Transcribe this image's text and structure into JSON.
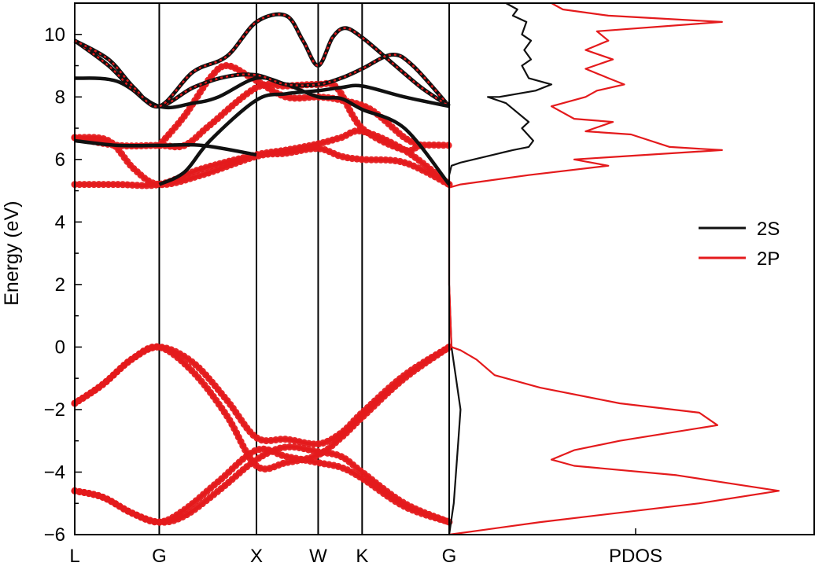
{
  "chart_data": [
    {
      "type": "line",
      "panel": "band-structure",
      "ylabel": "Energy (eV)",
      "ylim": [
        -6,
        11
      ],
      "y_ticks": [
        -6,
        -4,
        -2,
        0,
        2,
        4,
        6,
        8,
        10
      ],
      "k_labels": [
        "L",
        "G",
        "X",
        "W",
        "K",
        "G"
      ],
      "k_positions": [
        0,
        1,
        2.15,
        2.88,
        3.4,
        4.43
      ],
      "series": [
        {
          "color": "#e41a1c",
          "marker": "dots",
          "points": [
            [
              0,
              -1.8
            ],
            [
              0.33,
              -1.2
            ],
            [
              0.67,
              -0.4
            ],
            [
              1,
              0
            ],
            [
              1.4,
              -0.5
            ],
            [
              1.8,
              -1.7
            ],
            [
              2.15,
              -2.9
            ],
            [
              2.5,
              -2.95
            ],
            [
              2.88,
              -3.1
            ],
            [
              3.15,
              -2.75
            ],
            [
              3.4,
              -2.1
            ],
            [
              3.9,
              -0.9
            ],
            [
              4.43,
              0
            ]
          ]
        },
        {
          "color": "#e41a1c",
          "marker": "dots",
          "points": [
            [
              0,
              -1.8
            ],
            [
              0.33,
              -1.2
            ],
            [
              0.67,
              -0.4
            ],
            [
              1,
              0
            ],
            [
              1.4,
              -0.8
            ],
            [
              1.8,
              -2.2
            ],
            [
              2.15,
              -3.8
            ],
            [
              2.5,
              -3.7
            ],
            [
              2.88,
              -3.45
            ],
            [
              3.15,
              -2.9
            ],
            [
              3.4,
              -2.25
            ],
            [
              3.9,
              -1.0
            ],
            [
              4.43,
              0
            ]
          ]
        },
        {
          "color": "#e41a1c",
          "marker": "dots",
          "points": [
            [
              0,
              -4.6
            ],
            [
              0.33,
              -4.8
            ],
            [
              0.67,
              -5.3
            ],
            [
              1,
              -5.6
            ],
            [
              1.3,
              -5.4
            ],
            [
              1.7,
              -4.6
            ],
            [
              2.15,
              -3.6
            ],
            [
              2.5,
              -3.2
            ],
            [
              2.88,
              -3.35
            ],
            [
              3.15,
              -3.5
            ],
            [
              3.4,
              -4.0
            ],
            [
              3.9,
              -5.0
            ],
            [
              4.43,
              -5.6
            ]
          ]
        },
        {
          "color": "#e41a1c",
          "marker": "dots",
          "points": [
            [
              0,
              -4.6
            ],
            [
              0.33,
              -4.8
            ],
            [
              0.67,
              -5.3
            ],
            [
              1,
              -5.6
            ],
            [
              1.3,
              -5.2
            ],
            [
              1.7,
              -4.3
            ],
            [
              2.15,
              -3.3
            ],
            [
              2.5,
              -3.5
            ],
            [
              2.88,
              -3.7
            ],
            [
              3.15,
              -3.85
            ],
            [
              3.4,
              -4.2
            ],
            [
              3.9,
              -5.1
            ],
            [
              4.43,
              -5.6
            ]
          ]
        },
        {
          "color": "#e41a1c",
          "marker": "dots",
          "points": [
            [
              0,
              5.2
            ],
            [
              0.5,
              5.2
            ],
            [
              1,
              5.2
            ],
            [
              1.5,
              5.7
            ],
            [
              2.15,
              6.15
            ],
            [
              2.5,
              6.3
            ],
            [
              2.88,
              6.5
            ],
            [
              3.15,
              6.7
            ],
            [
              3.4,
              6.9
            ],
            [
              3.9,
              6.3
            ],
            [
              4.43,
              5.2
            ]
          ]
        },
        {
          "color": "#e41a1c",
          "marker": "dots",
          "points": [
            [
              0,
              6.7
            ],
            [
              0.4,
              6.6
            ],
            [
              0.7,
              5.7
            ],
            [
              1,
              5.2
            ],
            [
              1.5,
              5.5
            ],
            [
              2.15,
              6.1
            ],
            [
              2.5,
              6.2
            ],
            [
              2.88,
              6.35
            ],
            [
              3.15,
              6.1
            ],
            [
              3.4,
              6.0
            ],
            [
              3.9,
              5.9
            ],
            [
              4.43,
              5.2
            ]
          ]
        },
        {
          "color": "#e41a1c",
          "marker": "dots",
          "points": [
            [
              0,
              6.7
            ],
            [
              0.5,
              6.45
            ],
            [
              1,
              6.45
            ],
            [
              1.3,
              6.45
            ],
            [
              1.6,
              7.1
            ],
            [
              2.15,
              8.3
            ],
            [
              2.5,
              8.35
            ],
            [
              2.88,
              8.4
            ],
            [
              3.1,
              8.3
            ],
            [
              3.4,
              7.0
            ],
            [
              3.9,
              6.3
            ],
            [
              4.1,
              6.45
            ],
            [
              4.43,
              6.45
            ]
          ]
        },
        {
          "color": "#e41a1c",
          "marker": "dots",
          "points": [
            [
              1,
              6.45
            ],
            [
              1.3,
              7.4
            ],
            [
              1.6,
              8.6
            ],
            [
              1.8,
              9.0
            ],
            [
              2.1,
              8.6
            ],
            [
              2.5,
              8.0
            ],
            [
              2.88,
              8.0
            ],
            [
              3.15,
              7.9
            ],
            [
              3.5,
              7.6
            ],
            [
              3.9,
              6.7
            ],
            [
              4.1,
              6.45
            ]
          ]
        },
        {
          "color": "#111111",
          "marker": "none",
          "points": [
            [
              0,
              6.6
            ],
            [
              0.5,
              6.45
            ],
            [
              1,
              6.45
            ],
            [
              1.5,
              6.45
            ],
            [
              2.15,
              6.15
            ]
          ]
        },
        {
          "color": "#111111",
          "marker": "none",
          "points": [
            [
              0,
              8.6
            ],
            [
              0.5,
              8.5
            ],
            [
              1,
              7.7
            ],
            [
              1.4,
              7.8
            ],
            [
              1.7,
              8.0
            ],
            [
              2.15,
              8.6
            ],
            [
              2.5,
              8.4
            ],
            [
              2.88,
              8.0
            ],
            [
              3.15,
              7.95
            ],
            [
              3.4,
              7.6
            ],
            [
              3.9,
              7.0
            ],
            [
              4.43,
              5.2
            ]
          ]
        },
        {
          "color": "#111111",
          "marker": "dashed-red",
          "points": [
            [
              0,
              9.8
            ],
            [
              0.4,
              9.0
            ],
            [
              0.7,
              8.2
            ],
            [
              1,
              7.7
            ],
            [
              1.4,
              8.3
            ],
            [
              1.8,
              8.65
            ],
            [
              2.15,
              8.7
            ],
            [
              2.5,
              8.4
            ],
            [
              2.88,
              8.4
            ],
            [
              3.15,
              8.6
            ],
            [
              3.4,
              8.9
            ],
            [
              3.75,
              9.35
            ],
            [
              4.0,
              9.0
            ],
            [
              4.43,
              7.7
            ]
          ]
        },
        {
          "color": "#111111",
          "marker": "dashed-red",
          "points": [
            [
              0,
              9.8
            ],
            [
              0.4,
              9.2
            ],
            [
              0.7,
              8.3
            ],
            [
              1,
              7.7
            ],
            [
              1.4,
              8.8
            ],
            [
              1.8,
              9.3
            ],
            [
              2.15,
              10.4
            ],
            [
              2.5,
              10.6
            ],
            [
              2.7,
              9.8
            ],
            [
              2.88,
              9.0
            ],
            [
              3.05,
              9.9
            ],
            [
              3.2,
              10.2
            ],
            [
              3.4,
              9.9
            ],
            [
              3.75,
              9.1
            ],
            [
              4.1,
              8.3
            ],
            [
              4.43,
              7.7
            ]
          ]
        },
        {
          "color": "#111111",
          "marker": "none",
          "points": [
            [
              1,
              5.2
            ],
            [
              1.3,
              5.6
            ],
            [
              1.6,
              6.6
            ],
            [
              2.15,
              7.9
            ],
            [
              2.5,
              8.1
            ],
            [
              2.88,
              8.2
            ],
            [
              3.15,
              8.3
            ],
            [
              3.4,
              8.35
            ],
            [
              3.9,
              8.0
            ],
            [
              4.43,
              7.7
            ]
          ]
        }
      ]
    },
    {
      "type": "line",
      "panel": "pdos",
      "xlabel": "PDOS",
      "ylim": [
        -6,
        11
      ],
      "legend": {
        "position": "right",
        "entries": [
          {
            "name": "2S",
            "color": "#111111"
          },
          {
            "name": "2P",
            "color": "#e41a1c"
          }
        ]
      },
      "series": [
        {
          "name": "2S",
          "color": "#111111",
          "points": [
            [
              0,
              -6
            ],
            [
              0.02,
              -5
            ],
            [
              0.03,
              -4
            ],
            [
              0.04,
              -3
            ],
            [
              0.05,
              -2
            ],
            [
              0.03,
              -1
            ],
            [
              0.01,
              0
            ],
            [
              0,
              2
            ],
            [
              0,
              4
            ],
            [
              0,
              5.5
            ],
            [
              0.01,
              5.8
            ],
            [
              0.05,
              5.9
            ],
            [
              0.28,
              6.3
            ],
            [
              0.35,
              6.4
            ],
            [
              0.37,
              6.6
            ],
            [
              0.32,
              7.0
            ],
            [
              0.35,
              7.2
            ],
            [
              0.25,
              7.8
            ],
            [
              0.17,
              8.0
            ],
            [
              0.22,
              8.0
            ],
            [
              0.38,
              8.2
            ],
            [
              0.45,
              8.4
            ],
            [
              0.35,
              8.6
            ],
            [
              0.32,
              9.0
            ],
            [
              0.36,
              9.2
            ],
            [
              0.33,
              9.5
            ],
            [
              0.36,
              9.8
            ],
            [
              0.32,
              10.0
            ],
            [
              0.34,
              10.4
            ],
            [
              0.28,
              10.6
            ],
            [
              0.3,
              10.8
            ],
            [
              0.25,
              11
            ]
          ]
        },
        {
          "name": "2P",
          "color": "#e41a1c",
          "points": [
            [
              0,
              -6
            ],
            [
              0.4,
              -5.6
            ],
            [
              1.1,
              -5.0
            ],
            [
              1.45,
              -4.6
            ],
            [
              1.18,
              -4.3
            ],
            [
              1.0,
              -4.1
            ],
            [
              0.55,
              -3.8
            ],
            [
              0.45,
              -3.6
            ],
            [
              0.55,
              -3.3
            ],
            [
              0.75,
              -3.0
            ],
            [
              1.18,
              -2.5
            ],
            [
              1.1,
              -2.1
            ],
            [
              0.75,
              -1.8
            ],
            [
              0.4,
              -1.3
            ],
            [
              0.2,
              -0.9
            ],
            [
              0.12,
              -0.4
            ],
            [
              0.05,
              -0.1
            ],
            [
              0.01,
              0
            ],
            [
              0,
              2
            ],
            [
              0,
              4
            ],
            [
              0,
              5.1
            ],
            [
              0.05,
              5.2
            ],
            [
              0.35,
              5.5
            ],
            [
              0.7,
              5.8
            ],
            [
              0.55,
              6.0
            ],
            [
              1.2,
              6.3
            ],
            [
              0.97,
              6.4
            ],
            [
              0.8,
              6.8
            ],
            [
              0.6,
              6.9
            ],
            [
              0.72,
              7.2
            ],
            [
              0.55,
              7.3
            ],
            [
              0.45,
              7.7
            ],
            [
              0.6,
              8.0
            ],
            [
              0.65,
              8.2
            ],
            [
              0.77,
              8.4
            ],
            [
              0.7,
              8.6
            ],
            [
              0.6,
              8.9
            ],
            [
              0.72,
              9.2
            ],
            [
              0.6,
              9.5
            ],
            [
              0.7,
              9.8
            ],
            [
              0.65,
              10.1
            ],
            [
              1.2,
              10.4
            ],
            [
              0.7,
              10.6
            ],
            [
              0.5,
              10.8
            ],
            [
              0.45,
              11
            ]
          ]
        }
      ]
    }
  ]
}
